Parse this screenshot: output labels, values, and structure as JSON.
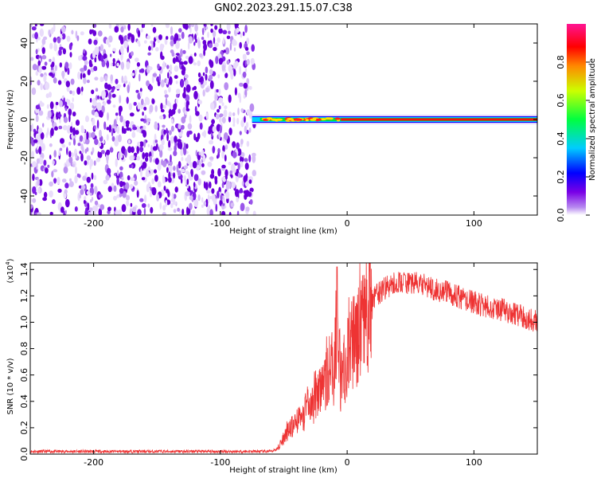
{
  "title": "GN02.2023.291.15.07.C38",
  "chart_data": [
    {
      "type": "heatmap",
      "xlabel": "Height of straight line (km)",
      "ylabel": "Frequency (Hz)",
      "xlim": [
        -250,
        150
      ],
      "ylim": [
        -50,
        50
      ],
      "x_ticks": [
        -200,
        -100,
        0,
        100
      ],
      "y_ticks": [
        -40,
        -20,
        0,
        20,
        40
      ],
      "colorbar": {
        "label": "Normalized spectral amplitude",
        "range": [
          0.0,
          1.0
        ],
        "ticks": [
          "0.0",
          "0.2",
          "0.4",
          "0.6",
          "0.8"
        ],
        "colormap": [
          "#ffffff",
          "#8a2be2",
          "#0000ff",
          "#00ffff",
          "#00ff00",
          "#ffff00",
          "#ff0000",
          "#ff1493"
        ]
      },
      "noise_region_x": [
        -250,
        -75
      ],
      "signal_line_frequency_hz": 0,
      "signal_start_x": -75
    },
    {
      "type": "line",
      "xlabel": "Height of straight line (km)",
      "ylabel": "SNR (10 * v/v)",
      "y_scale_label": "(x10",
      "y_scale_exponent": "4",
      "xlim": [
        -250,
        150
      ],
      "ylim": [
        0.0,
        1.45
      ],
      "x_ticks": [
        -200,
        -100,
        0,
        100
      ],
      "y_ticks": [
        "0.0",
        "0.2",
        "0.4",
        "0.6",
        "0.8",
        "1.0",
        "1.2",
        "1.4"
      ],
      "series_color": "#ee3333",
      "series": [
        {
          "x": [
            -250,
            -200,
            -150,
            -100,
            -60,
            -55,
            -50,
            -45,
            -40,
            -35,
            -30,
            -25,
            -20,
            -15,
            -10,
            -8,
            -5,
            0,
            5,
            10,
            15,
            20,
            30,
            40,
            50,
            60,
            70,
            80,
            90,
            100,
            110,
            120,
            130,
            140,
            150
          ],
          "y": [
            0.02,
            0.02,
            0.02,
            0.02,
            0.02,
            0.04,
            0.12,
            0.2,
            0.25,
            0.3,
            0.35,
            0.42,
            0.5,
            0.58,
            0.65,
            1.0,
            0.55,
            0.72,
            0.85,
            0.98,
            1.1,
            1.18,
            1.26,
            1.3,
            1.3,
            1.28,
            1.25,
            1.22,
            1.18,
            1.15,
            1.12,
            1.1,
            1.07,
            1.04,
            1.0
          ]
        }
      ]
    }
  ]
}
